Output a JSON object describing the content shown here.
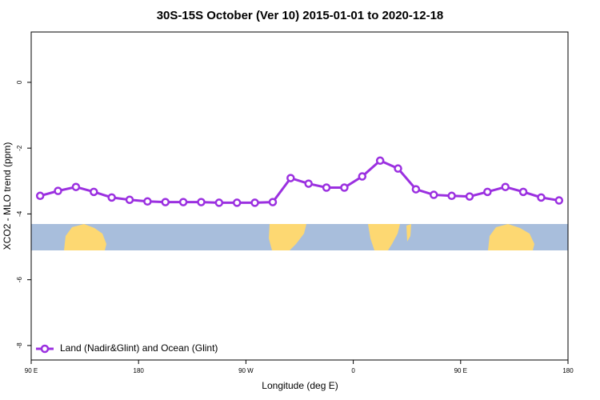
{
  "chart_data": {
    "type": "line",
    "title": "30S-15S October (Ver 10)   2015-01-01 to 2020-12-18",
    "x_label": "Longitude (deg E)",
    "y_label": "XCO2 - MLO trend (ppm)",
    "x": [
      97.5,
      112.5,
      127.5,
      142.5,
      157.5,
      172.5,
      187.5,
      202.5,
      217.5,
      232.5,
      247.5,
      262.5,
      277.5,
      292.5,
      307.5,
      322.5,
      337.5,
      352.5,
      367.5,
      382.5,
      397.5,
      412.5,
      427.5,
      442.5,
      457.5,
      472.5,
      487.5,
      502.5,
      517.5,
      532.5
    ],
    "series": [
      {
        "name": "Land (Nadir&Glint) and Ocean (Glint)",
        "color": "#9b30e0",
        "values": [
          -3.45,
          -3.3,
          -3.18,
          -3.33,
          -3.5,
          -3.57,
          -3.62,
          -3.64,
          -3.64,
          -3.64,
          -3.66,
          -3.66,
          -3.66,
          -3.64,
          -2.91,
          -3.08,
          -3.2,
          -3.2,
          -2.86,
          -2.38,
          -2.62,
          -3.25,
          -3.42,
          -3.45,
          -3.47,
          -3.33,
          -3.18,
          -3.33,
          -3.5,
          -3.59
        ]
      }
    ],
    "xlim": [
      90,
      540
    ],
    "xticks": [
      {
        "value": 90,
        "label": "90 E"
      },
      180,
      {
        "value": 270,
        "label": "90 W"
      },
      {
        "value": 360,
        "label": "0"
      },
      {
        "value": 450,
        "label": "90 E"
      },
      {
        "value": 540,
        "label": "180"
      }
    ],
    "ylim": [
      -8.44,
      1.53
    ],
    "yticks": [
      -8,
      -6,
      -4,
      -2,
      0
    ],
    "legend": "bottom-left"
  }
}
